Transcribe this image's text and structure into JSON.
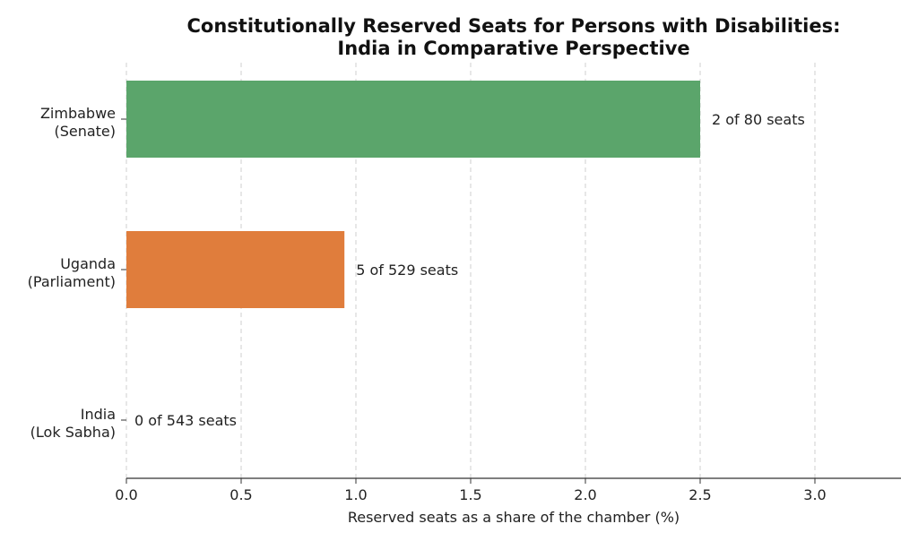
{
  "chart_data": {
    "type": "bar",
    "orientation": "horizontal",
    "title_lines": [
      "Constitutionally Reserved Seats for Persons with Disabilities:",
      "India in Comparative Perspective"
    ],
    "xlabel": "Reserved seats as a share of the chamber (%)",
    "ylabel": "",
    "xlim": [
      0,
      3.4
    ],
    "xticks": [
      "0.0",
      "0.5",
      "1.0",
      "1.5",
      "2.0",
      "2.5",
      "3.0"
    ],
    "xtick_values": [
      0,
      0.5,
      1.0,
      1.5,
      2.0,
      2.5,
      3.0
    ],
    "grid": "vertical dashed",
    "categories": [
      [
        "Zimbabwe",
        "(Senate)"
      ],
      [
        "Uganda",
        "(Parliament)"
      ],
      [
        "India",
        "(Lok Sabha)"
      ]
    ],
    "values": [
      2.5,
      0.95,
      0
    ],
    "bar_labels": [
      "2 of 80 seats",
      "5 of 529 seats",
      "0 of 543 seats"
    ],
    "colors": [
      "#5ba56b",
      "#e07d3c",
      "#4c72b0"
    ]
  }
}
